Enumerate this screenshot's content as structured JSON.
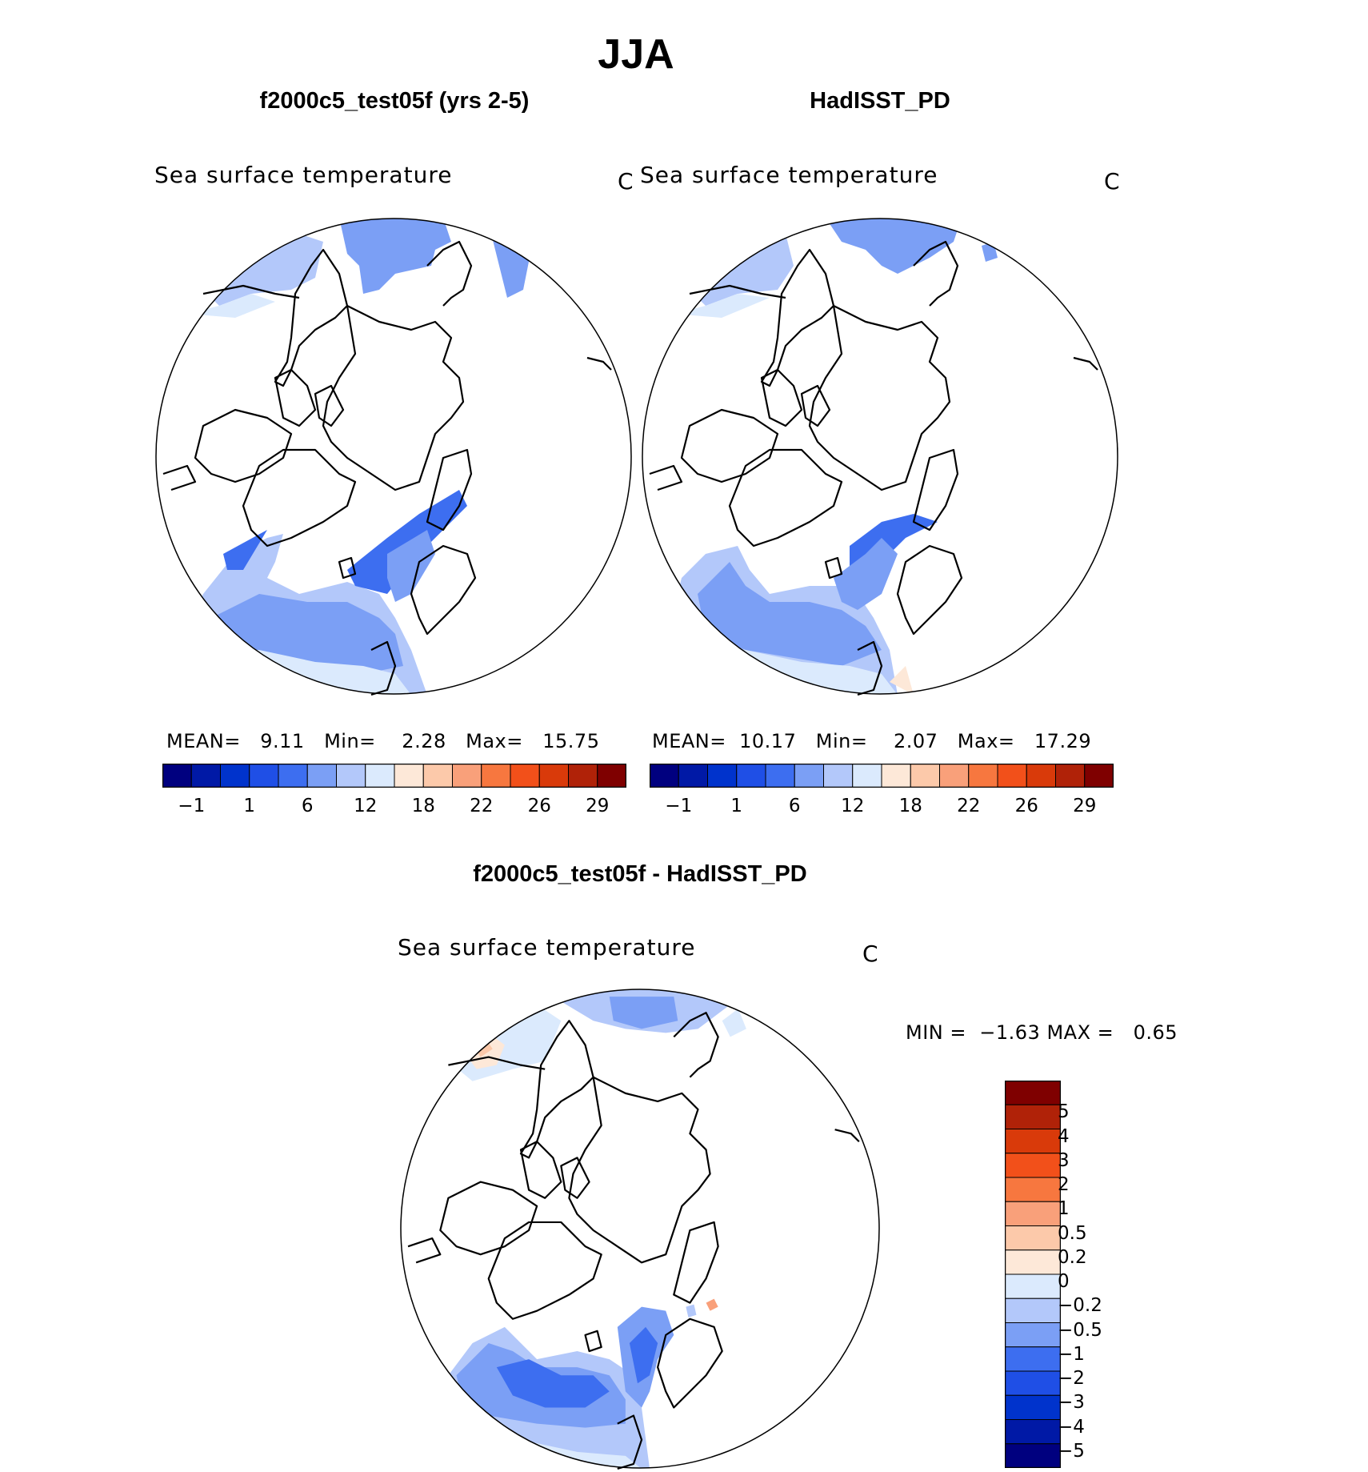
{
  "title": "JJA",
  "panel_left": {
    "title": "f2000c5_test05f (yrs 2-5)",
    "variable": "Sea surface temperature",
    "units": "C",
    "stats": {
      "mean_label": "MEAN=",
      "mean": "9.11",
      "min_label": "Min=",
      "min": "2.28",
      "max_label": "Max=",
      "max": "15.75"
    }
  },
  "panel_right": {
    "title": "HadISST_PD",
    "variable": "Sea surface temperature",
    "units": "C",
    "stats": {
      "mean_label": "MEAN=",
      "mean": "10.17",
      "min_label": "Min=",
      "min": "2.07",
      "max_label": "Max=",
      "max": "17.29"
    }
  },
  "panel_diff": {
    "title": "f2000c5_test05f - HadISST_PD",
    "variable": "Sea surface temperature",
    "units": "C",
    "stats": {
      "min_label": "MIN =",
      "min": "−1.63",
      "max_label": "MAX =",
      "max": "0.65"
    }
  },
  "abs_colorbar": {
    "colors": [
      "#00007f",
      "#0019a6",
      "#0033cc",
      "#1f4fe6",
      "#3d6ef0",
      "#7b9ff5",
      "#b3c8fa",
      "#dbeafd",
      "#fde8d8",
      "#fcc9aa",
      "#f9a07a",
      "#f7773f",
      "#f2501a",
      "#d93a0a",
      "#b02208",
      "#7f0000"
    ],
    "tick_labels": [
      "−1",
      "1",
      "6",
      "12",
      "18",
      "22",
      "26",
      "29"
    ]
  },
  "diff_colorbar": {
    "colors": [
      "#7f0000",
      "#b02208",
      "#d93a0a",
      "#f2501a",
      "#f7773f",
      "#f9a07a",
      "#fcc9aa",
      "#fde8d8",
      "#dbeafd",
      "#b3c8fa",
      "#7b9ff5",
      "#3d6ef0",
      "#1f4fe6",
      "#0033cc",
      "#0019a6",
      "#00007f"
    ],
    "tick_labels": [
      "5",
      "4",
      "3",
      "2",
      "1",
      "0.5",
      "0.2",
      "0",
      "−0.2",
      "−0.5",
      "−1",
      "−2",
      "−3",
      "−4",
      "−5"
    ]
  }
}
